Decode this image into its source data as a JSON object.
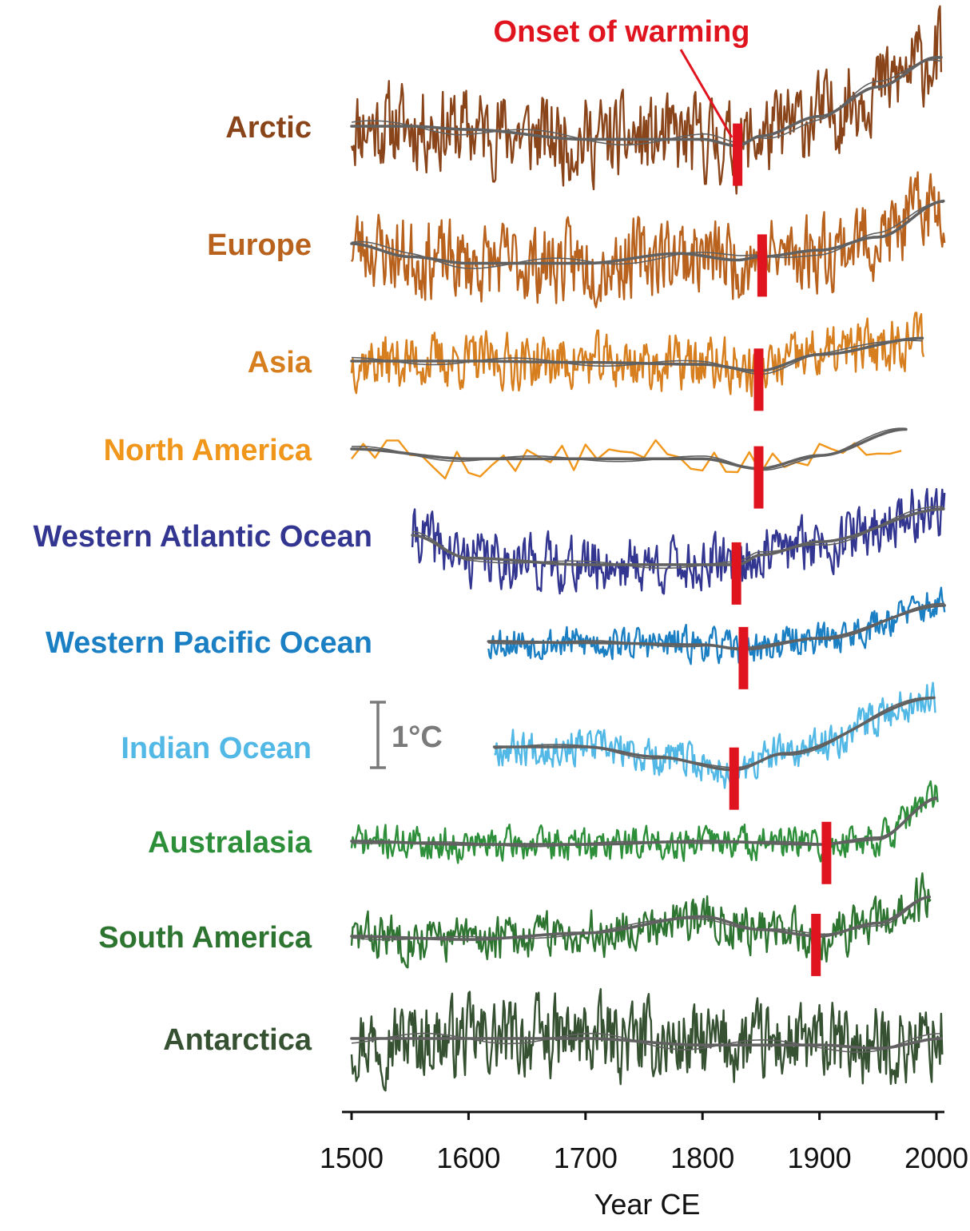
{
  "chart_data": {
    "type": "line",
    "xlabel": "Year CE",
    "xlim": [
      1500,
      2000
    ],
    "xticks": [
      1500,
      1600,
      1700,
      1800,
      1900,
      2000
    ],
    "grid": false,
    "annotation": {
      "text": "Onset of warming",
      "color": "#e0141e"
    },
    "scale_bar": {
      "label": "1°C",
      "value": 1,
      "color": "#7a7a7a"
    },
    "trend_color": "#616161",
    "onset_color": "#e0141e",
    "series": [
      {
        "name": "Arctic",
        "color": "#8a4419",
        "start": 1500,
        "end": 2004,
        "onset": 1830,
        "amp": 1.4,
        "seed": 11,
        "trend": [
          [
            1500,
            0
          ],
          [
            1550,
            0
          ],
          [
            1600,
            -0.05
          ],
          [
            1700,
            -0.2
          ],
          [
            1800,
            -0.2
          ],
          [
            1830,
            -0.3
          ],
          [
            1850,
            -0.15
          ],
          [
            1900,
            0.15
          ],
          [
            1950,
            0.6
          ],
          [
            2000,
            1.05
          ]
        ]
      },
      {
        "name": "Europe",
        "color": "#b8621d",
        "start": 1500,
        "end": 2007,
        "onset": 1851,
        "amp": 1.3,
        "seed": 23,
        "trend": [
          [
            1500,
            0
          ],
          [
            1550,
            -0.2
          ],
          [
            1600,
            -0.3
          ],
          [
            1700,
            -0.3
          ],
          [
            1780,
            -0.15
          ],
          [
            1830,
            -0.25
          ],
          [
            1850,
            -0.2
          ],
          [
            1900,
            -0.1
          ],
          [
            1950,
            0.1
          ],
          [
            2007,
            0.65
          ]
        ]
      },
      {
        "name": "Asia",
        "color": "#d77f1f",
        "start": 1500,
        "end": 1989,
        "onset": 1848,
        "amp": 0.9,
        "seed": 37,
        "trend": [
          [
            1500,
            0
          ],
          [
            1600,
            0
          ],
          [
            1700,
            -0.02
          ],
          [
            1800,
            -0.05
          ],
          [
            1848,
            -0.15
          ],
          [
            1900,
            0.1
          ],
          [
            1989,
            0.35
          ]
        ]
      },
      {
        "name": "North America",
        "color": "#f0961a",
        "start": 1500,
        "end": 1974,
        "onset": 1848,
        "amp": 0.7,
        "seed": 5,
        "step": 10,
        "trend": [
          [
            1500,
            0
          ],
          [
            1600,
            -0.15
          ],
          [
            1700,
            -0.15
          ],
          [
            1800,
            -0.15
          ],
          [
            1848,
            -0.3
          ],
          [
            1900,
            -0.1
          ],
          [
            1974,
            0.3
          ]
        ]
      },
      {
        "name": "Western Atlantic Ocean",
        "color": "#333691",
        "start": 1552,
        "end": 2007,
        "onset": 1829,
        "amp": 0.9,
        "seed": 41,
        "trend": [
          [
            1552,
            0
          ],
          [
            1600,
            -0.35
          ],
          [
            1700,
            -0.45
          ],
          [
            1800,
            -0.45
          ],
          [
            1830,
            -0.45
          ],
          [
            1850,
            -0.3
          ],
          [
            1900,
            -0.1
          ],
          [
            2007,
            0.4
          ]
        ]
      },
      {
        "name": "Western Pacific Ocean",
        "color": "#1b7fc4",
        "start": 1617,
        "end": 2007,
        "onset": 1835,
        "amp": 0.55,
        "seed": 53,
        "trend": [
          [
            1617,
            0
          ],
          [
            1700,
            -0.02
          ],
          [
            1800,
            -0.05
          ],
          [
            1835,
            -0.12
          ],
          [
            1900,
            0.05
          ],
          [
            2007,
            0.55
          ]
        ]
      },
      {
        "name": "Indian Ocean",
        "color": "#52b8e6",
        "start": 1622,
        "end": 1999,
        "onset": 1827,
        "amp": 0.6,
        "seed": 67,
        "trend": [
          [
            1622,
            0
          ],
          [
            1700,
            0
          ],
          [
            1760,
            -0.15
          ],
          [
            1827,
            -0.35
          ],
          [
            1870,
            -0.1
          ],
          [
            1999,
            0.75
          ]
        ]
      },
      {
        "name": "Australasia",
        "color": "#2d8f39",
        "start": 1500,
        "end": 2001,
        "onset": 1906,
        "amp": 0.55,
        "seed": 71,
        "trend": [
          [
            1500,
            0
          ],
          [
            1600,
            -0.05
          ],
          [
            1700,
            -0.05
          ],
          [
            1800,
            0
          ],
          [
            1900,
            -0.05
          ],
          [
            1950,
            0.05
          ],
          [
            2001,
            0.65
          ]
        ]
      },
      {
        "name": "South America",
        "color": "#2e7431",
        "start": 1500,
        "end": 1995,
        "onset": 1897,
        "amp": 0.75,
        "seed": 83,
        "trend": [
          [
            1500,
            0
          ],
          [
            1600,
            -0.05
          ],
          [
            1700,
            0.05
          ],
          [
            1800,
            0.3
          ],
          [
            1850,
            0.1
          ],
          [
            1900,
            0.0
          ],
          [
            1950,
            0.2
          ],
          [
            1995,
            0.6
          ]
        ]
      },
      {
        "name": "Antarctica",
        "color": "#355131",
        "start": 1500,
        "end": 2005,
        "onset": null,
        "amp": 1.3,
        "seed": 97,
        "trend": [
          [
            1500,
            0
          ],
          [
            1600,
            0
          ],
          [
            1700,
            0
          ],
          [
            1800,
            -0.1
          ],
          [
            1900,
            -0.1
          ],
          [
            1950,
            -0.15
          ],
          [
            2005,
            0
          ]
        ]
      }
    ]
  }
}
